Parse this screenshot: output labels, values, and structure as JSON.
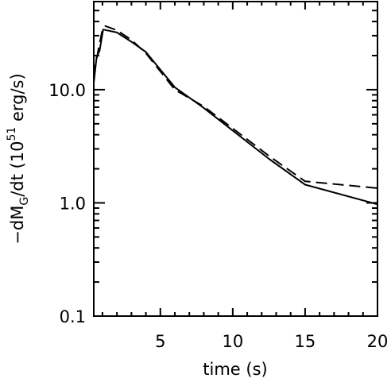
{
  "chart_data": {
    "type": "line",
    "title": "",
    "xlabel": "time (s)",
    "ylabel": {
      "prefix": "−dM",
      "subscript": "G",
      "middle": "/dt  (10",
      "superscript": "51",
      "suffix": " erg/s)"
    },
    "x_range": [
      0.4,
      20
    ],
    "y_range": [
      0.1,
      60
    ],
    "y_scale": "log",
    "x_ticks": [
      {
        "value": 5,
        "label": "5"
      },
      {
        "value": 10,
        "label": "10"
      },
      {
        "value": 15,
        "label": "15"
      },
      {
        "value": 20,
        "label": "20"
      }
    ],
    "y_ticks": [
      {
        "value": 0.1,
        "label": "0.1"
      },
      {
        "value": 1,
        "label": "1.0"
      },
      {
        "value": 10,
        "label": "10.0"
      }
    ],
    "grid": false,
    "series": [
      {
        "style": "solid",
        "color": "#000000",
        "points": [
          [
            0.4,
            11.5
          ],
          [
            0.6,
            19.5
          ],
          [
            0.8,
            22.0
          ],
          [
            1.05,
            34.0
          ],
          [
            2.0,
            32.0
          ],
          [
            3.0,
            26.5
          ],
          [
            4.0,
            21.5
          ],
          [
            5.0,
            15.0
          ],
          [
            6.0,
            10.5
          ],
          [
            8.0,
            6.9
          ],
          [
            10.0,
            4.35
          ],
          [
            12.5,
            2.45
          ],
          [
            15.0,
            1.45
          ],
          [
            20.0,
            0.97
          ]
        ]
      },
      {
        "style": "dashed",
        "color": "#000000",
        "points": [
          [
            0.4,
            13.5
          ],
          [
            0.7,
            22.0
          ],
          [
            1.0,
            34.0
          ],
          [
            1.2,
            36.5
          ],
          [
            2.0,
            33.5
          ],
          [
            3.0,
            27.5
          ],
          [
            4.0,
            21.0
          ],
          [
            5.0,
            14.5
          ],
          [
            6.0,
            10.0
          ],
          [
            8.0,
            7.1
          ],
          [
            10.0,
            4.55
          ],
          [
            12.5,
            2.6
          ],
          [
            15.0,
            1.55
          ],
          [
            20.0,
            1.35
          ]
        ]
      }
    ]
  }
}
